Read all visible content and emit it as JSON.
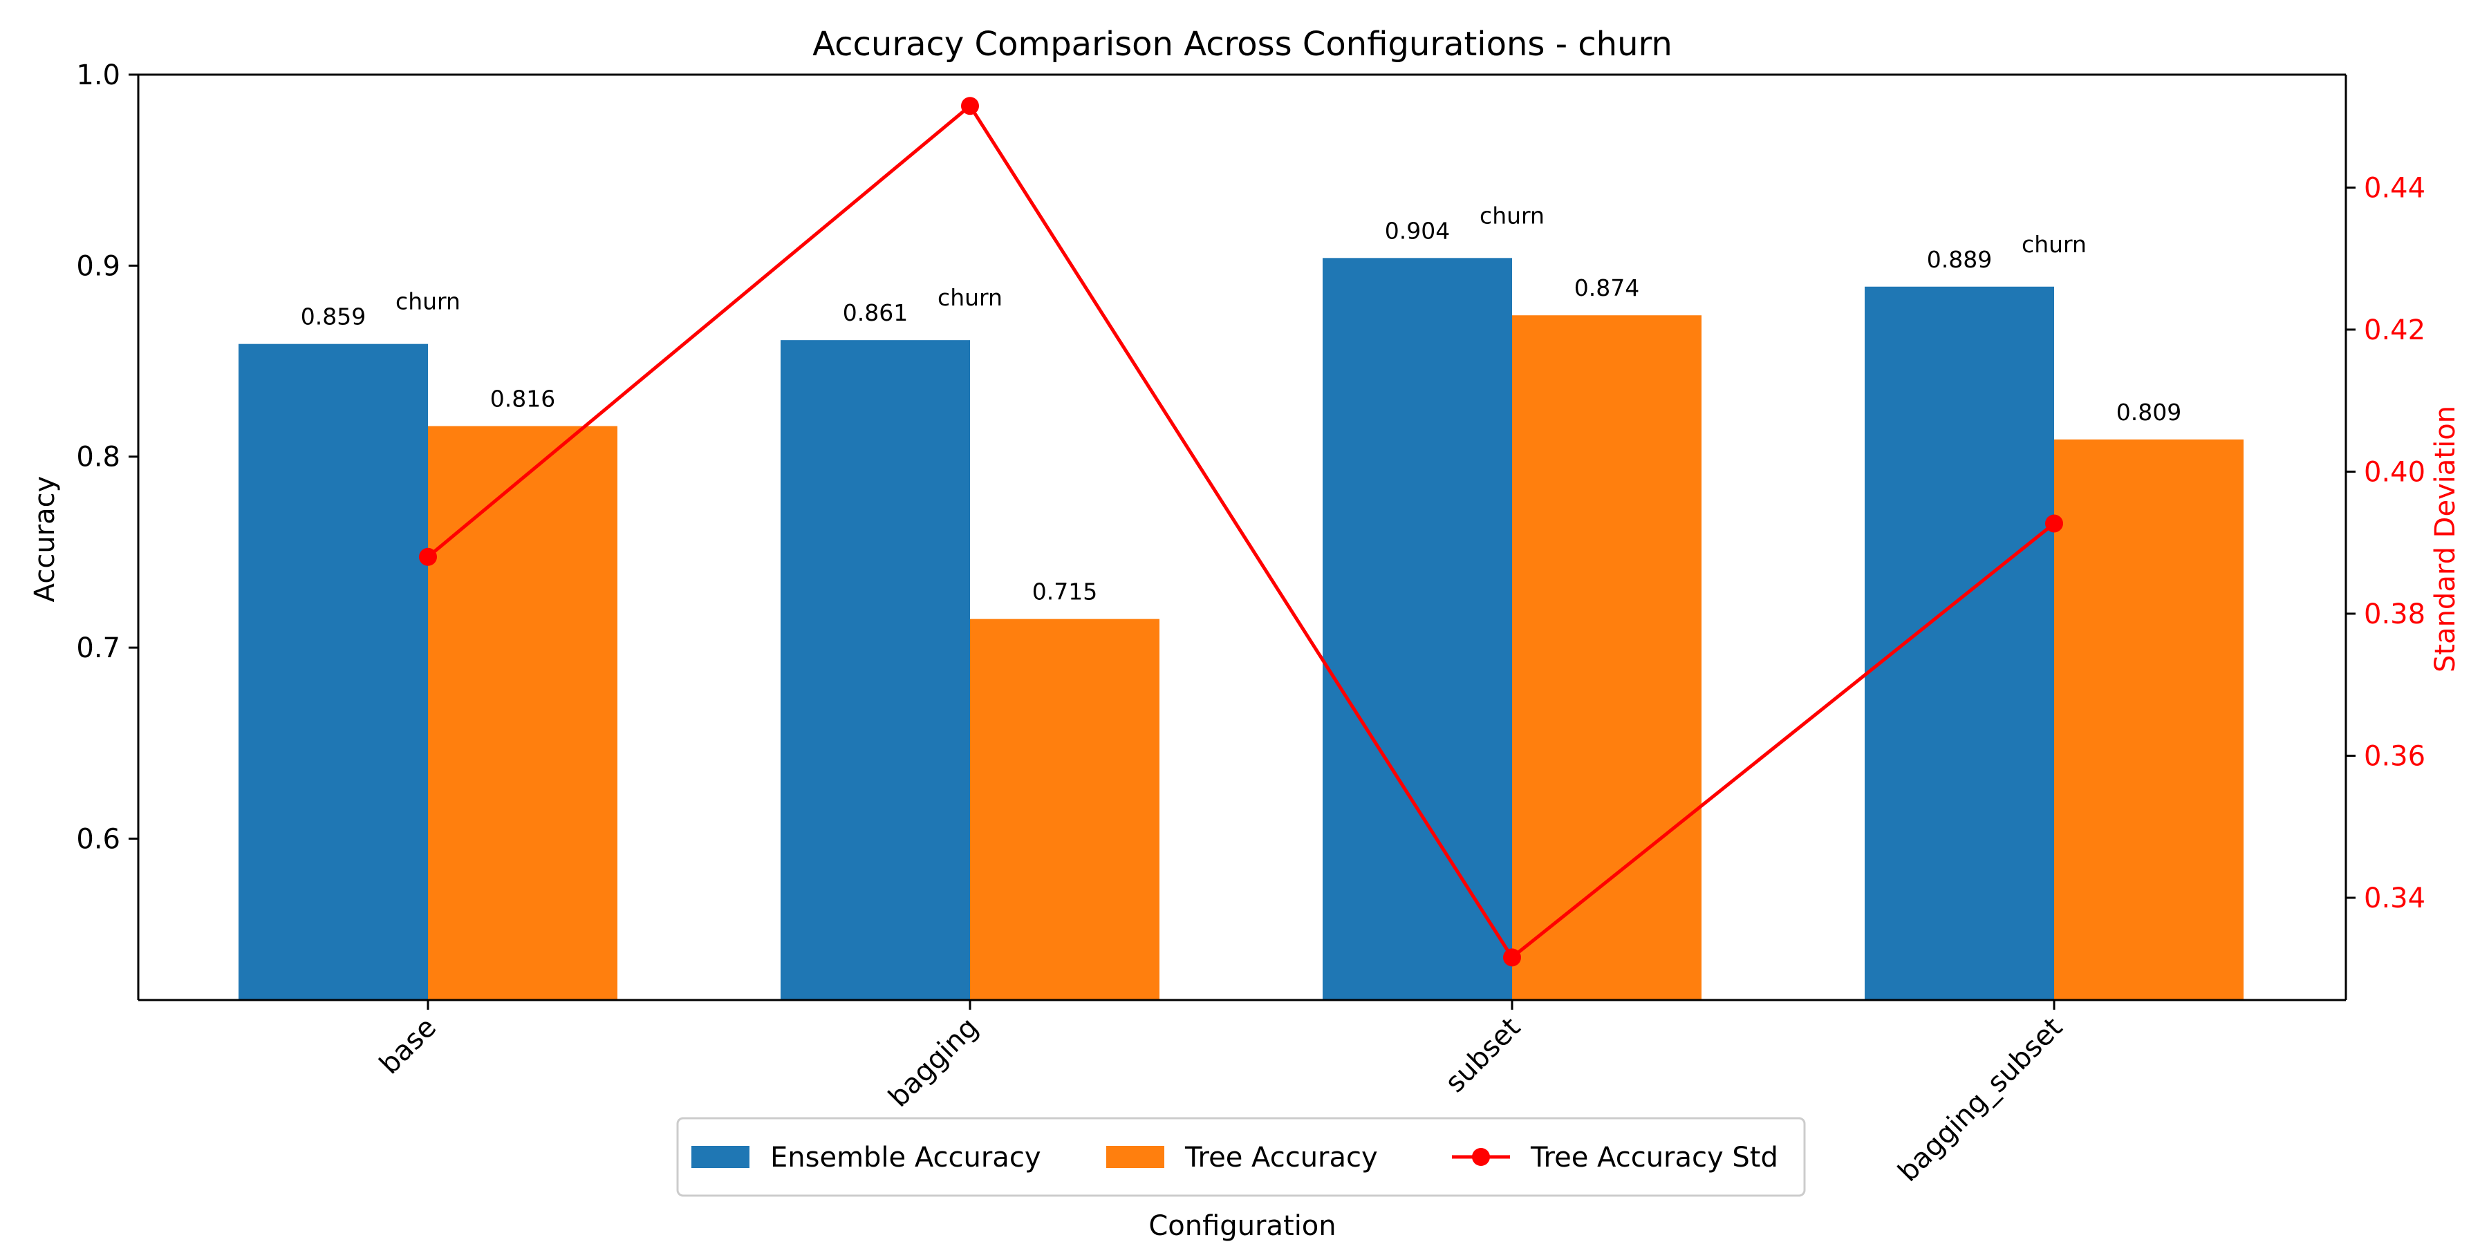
{
  "colors": {
    "ensemble": "#1f77b4",
    "tree": "#ff7f0e",
    "std_line": "#ff0000",
    "axis": "#000000"
  },
  "chart_data": {
    "type": "bar",
    "title": "Accuracy Comparison Across Configurations - churn",
    "xlabel": "Configuration",
    "ylabel": "Accuracy",
    "y2label": "Standard Deviation",
    "categories": [
      "base",
      "bagging",
      "subset",
      "bagging_subset"
    ],
    "ylim": [
      0.5155,
      1.0
    ],
    "y2lim": [
      0.3256,
      0.4559
    ],
    "yticks": [
      "0.6",
      "0.7",
      "0.8",
      "0.9",
      "1.0"
    ],
    "yticks_values": [
      0.6,
      0.7,
      0.8,
      0.9,
      1.0
    ],
    "y2ticks": [
      "0.34",
      "0.36",
      "0.38",
      "0.40",
      "0.42",
      "0.44"
    ],
    "y2ticks_values": [
      0.34,
      0.36,
      0.38,
      0.4,
      0.42,
      0.44
    ],
    "series": [
      {
        "name": "Ensemble Accuracy",
        "values": [
          0.859,
          0.861,
          0.904,
          0.889
        ],
        "labels": [
          "0.859",
          "0.861",
          "0.904",
          "0.889"
        ],
        "annotations": [
          "churn",
          "churn",
          "churn",
          "churn"
        ]
      },
      {
        "name": "Tree Accuracy",
        "values": [
          0.816,
          0.715,
          0.874,
          0.809
        ],
        "labels": [
          "0.816",
          "0.715",
          "0.874",
          "0.809"
        ]
      },
      {
        "name": "Tree Accuracy Std",
        "axis": "right",
        "type": "line",
        "values": [
          0.388,
          0.4515,
          0.3316,
          0.3927
        ]
      }
    ],
    "legend": [
      "Ensemble Accuracy",
      "Tree Accuracy",
      "Tree Accuracy Std"
    ],
    "legend_position": "bottom-center",
    "grid": false
  }
}
